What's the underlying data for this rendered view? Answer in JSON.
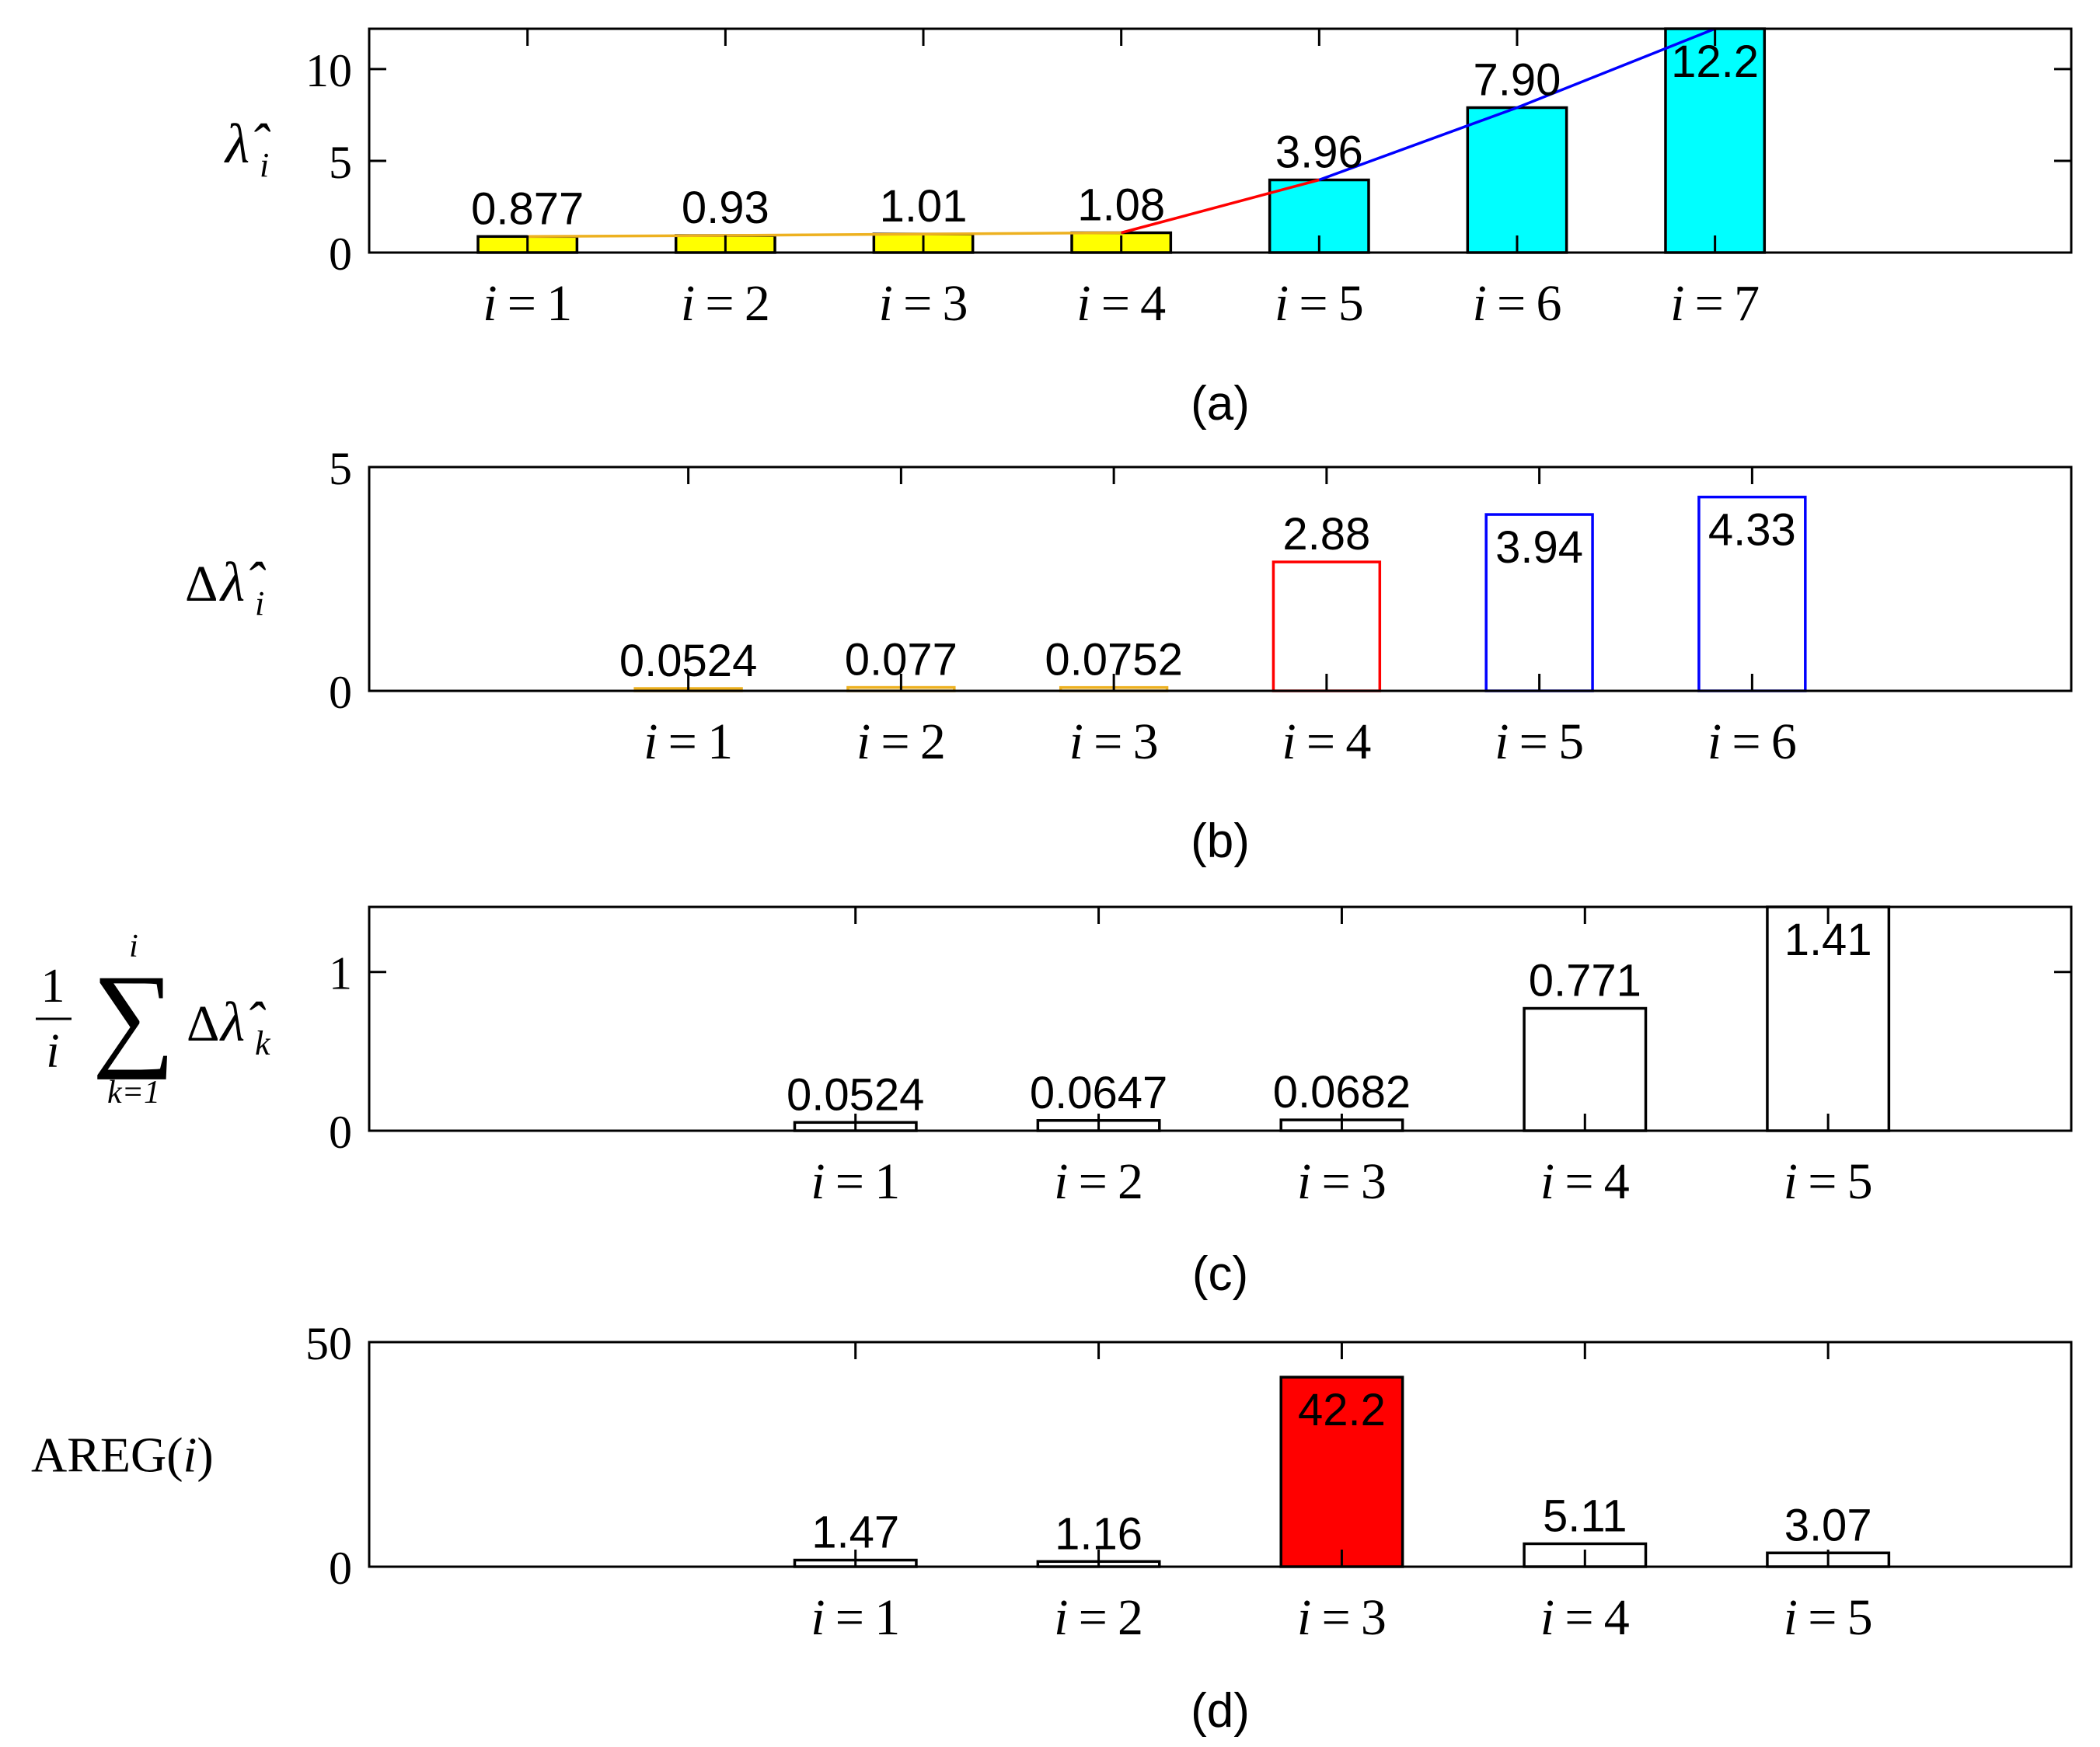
{
  "chart_data": [
    {
      "type": "bar",
      "panel_label": "(a)",
      "ylabel": {
        "symbol": "λ̂",
        "sub": "i",
        "prefix": ""
      },
      "ylim": [
        0,
        12.2
      ],
      "yticks": [
        "0",
        "5",
        "10"
      ],
      "ytick_values": [
        0,
        5,
        10
      ],
      "xlim": [
        0.2,
        8.8
      ],
      "categories": [
        "i = 1",
        "i = 2",
        "i = 3",
        "i = 4",
        "i = 5",
        "i = 6",
        "i = 7"
      ],
      "values": [
        0.877,
        0.93,
        1.01,
        1.08,
        3.96,
        7.9,
        12.2
      ],
      "value_labels": [
        "0.877",
        "0.93",
        "1.01",
        "1.08",
        "3.96",
        "7.90",
        "12.2"
      ],
      "bar_fills": [
        "#ffff00",
        "#ffff00",
        "#ffff00",
        "#ffff00",
        "#00ffff",
        "#00ffff",
        "#00ffff"
      ],
      "bar_strokes": [
        "#000000",
        "#000000",
        "#000000",
        "#000000",
        "#000000",
        "#000000",
        "#000000"
      ],
      "bar_width": 0.5,
      "lines": [
        {
          "color": "#edb120",
          "x": [
            1,
            2,
            3,
            4
          ],
          "y": [
            0.877,
            0.93,
            1.01,
            1.08
          ]
        },
        {
          "color": "#ff0000",
          "x": [
            4,
            5
          ],
          "y": [
            1.08,
            3.96
          ]
        },
        {
          "color": "#0000ff",
          "x": [
            5,
            6,
            7
          ],
          "y": [
            3.96,
            7.9,
            12.2
          ]
        }
      ]
    },
    {
      "type": "bar",
      "panel_label": "(b)",
      "ylabel": {
        "symbol": "λ̂",
        "sub": "i",
        "prefix": "Δ"
      },
      "ylim": [
        0,
        5
      ],
      "yticks": [
        "0",
        "5"
      ],
      "ytick_values": [
        0,
        5
      ],
      "xlim": [
        -0.5,
        7.5
      ],
      "categories": [
        "i = 1",
        "i = 2",
        "i = 3",
        "i = 4",
        "i = 5",
        "i = 6"
      ],
      "values": [
        0.0524,
        0.077,
        0.0752,
        2.88,
        3.94,
        4.33
      ],
      "value_labels": [
        "0.0524",
        "0.077",
        "0.0752",
        "2.88",
        "3.94",
        "4.33"
      ],
      "bar_fills": [
        "none",
        "none",
        "none",
        "none",
        "none",
        "none"
      ],
      "bar_strokes": [
        "#edb120",
        "#edb120",
        "#edb120",
        "#ff0000",
        "#0000ff",
        "#0000ff"
      ],
      "bar_width": 0.5
    },
    {
      "type": "bar",
      "panel_label": "(c)",
      "ylabel": {
        "type": "mean-sum",
        "numerator": "1",
        "denominator": "i",
        "upper": "i",
        "lower": "k=1",
        "prefix": "Δ",
        "symbol": "λ̂",
        "sub": "k"
      },
      "ylim": [
        0,
        1.41
      ],
      "yticks": [
        "0",
        "1"
      ],
      "ytick_values": [
        0,
        1
      ],
      "xlim": [
        -1,
        6
      ],
      "categories": [
        "i = 1",
        "i = 2",
        "i = 3",
        "i = 4",
        "i = 5"
      ],
      "values": [
        0.0524,
        0.0647,
        0.0682,
        0.771,
        1.41
      ],
      "value_labels": [
        "0.0524",
        "0.0647",
        "0.0682",
        "0.771",
        "1.41"
      ],
      "bar_fills": [
        "none",
        "none",
        "none",
        "none",
        "none"
      ],
      "bar_strokes": [
        "#000000",
        "#000000",
        "#000000",
        "#000000",
        "#000000"
      ],
      "bar_width": 0.5
    },
    {
      "type": "bar",
      "panel_label": "(d)",
      "ylabel": {
        "type": "plain",
        "text": "AREG(",
        "var": "i",
        "suffix": ")"
      },
      "ylim": [
        0,
        50
      ],
      "yticks": [
        "0",
        "50"
      ],
      "ytick_values": [
        0,
        50
      ],
      "xlim": [
        -1,
        6
      ],
      "categories": [
        "i = 1",
        "i = 2",
        "i = 3",
        "i = 4",
        "i = 5"
      ],
      "values": [
        1.47,
        1.16,
        42.2,
        5.11,
        3.07
      ],
      "value_labels": [
        "1.47",
        "1.16",
        "42.2",
        "5.11",
        "3.07"
      ],
      "bar_fills": [
        "none",
        "none",
        "#ff0000",
        "none",
        "none"
      ],
      "bar_strokes": [
        "#000000",
        "#000000",
        "#000000",
        "#000000",
        "#000000"
      ],
      "bar_width": 0.5
    }
  ]
}
